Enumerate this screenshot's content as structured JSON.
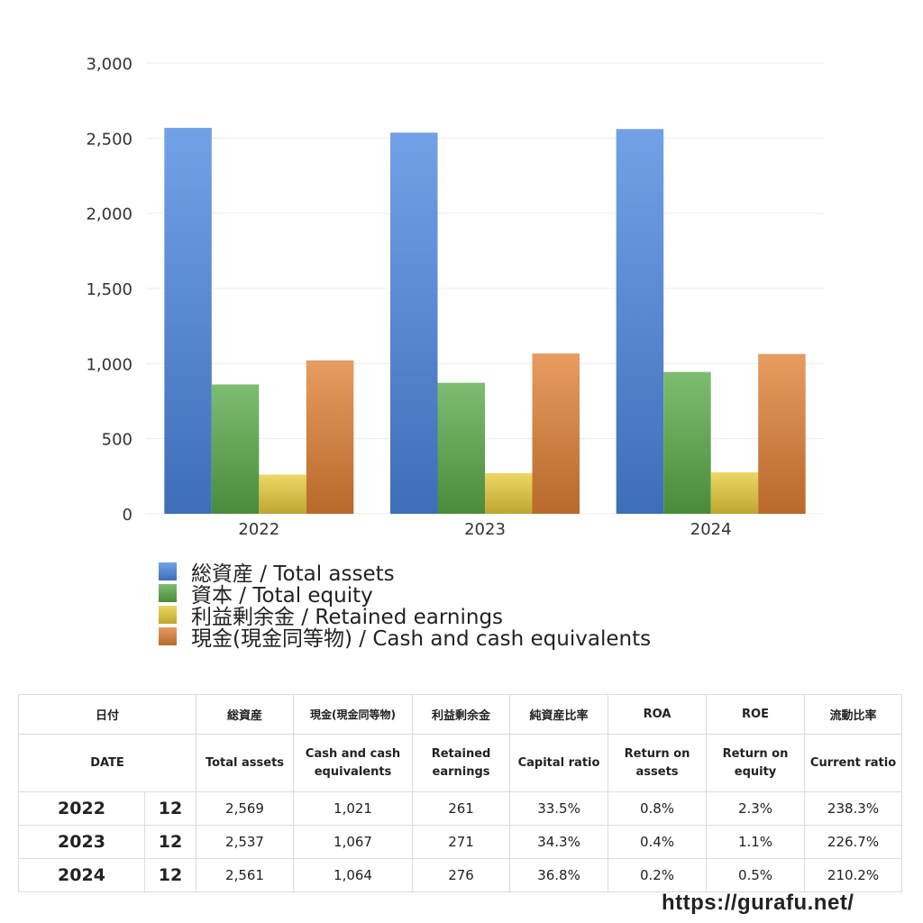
{
  "chart_data": {
    "type": "bar",
    "categories": [
      "2022",
      "2023",
      "2024"
    ],
    "series": [
      {
        "name": "総資産 / Total assets",
        "values": [
          2569,
          2537,
          2561
        ],
        "color": "#4a86e0"
      },
      {
        "name": "資本 / Total equity",
        "values": [
          861,
          872,
          944
        ],
        "color": "#5aaa48"
      },
      {
        "name": "利益剰余金 / Retained earnings",
        "values": [
          261,
          271,
          276
        ],
        "color": "#e8cc3a"
      },
      {
        "name": "現金(現金同等物) / Cash and cash equivalents",
        "values": [
          1021,
          1067,
          1064
        ],
        "color": "#e08035"
      }
    ],
    "y_ticks": [
      "0",
      "500",
      "1,000",
      "1,500",
      "2,000",
      "2,500",
      "3,000"
    ],
    "ylim": [
      0,
      3000
    ],
    "grid": true,
    "legend_position": "bottom-left"
  },
  "table": {
    "headers_jp": [
      "日付",
      "総資産",
      "現金(現金同等物)",
      "利益剰余金",
      "純資産比率",
      "ROA",
      "ROE",
      "流動比率"
    ],
    "headers_en": [
      "DATE",
      [
        "Total assets"
      ],
      [
        "Cash and cash",
        "equivalents"
      ],
      [
        "Retained",
        "earnings"
      ],
      [
        "Capital ratio"
      ],
      [
        "Return on",
        "assets"
      ],
      [
        "Return on",
        "equity"
      ],
      [
        "Current ratio"
      ]
    ],
    "rows": [
      {
        "year": "2022",
        "month": "12",
        "total_assets": "2,569",
        "cash": "1,021",
        "retained": "261",
        "capital_ratio": "33.5%",
        "roa": "0.8%",
        "roe": "2.3%",
        "current_ratio": "238.3%"
      },
      {
        "year": "2023",
        "month": "12",
        "total_assets": "2,537",
        "cash": "1,067",
        "retained": "271",
        "capital_ratio": "34.3%",
        "roa": "0.4%",
        "roe": "1.1%",
        "current_ratio": "226.7%"
      },
      {
        "year": "2024",
        "month": "12",
        "total_assets": "2,561",
        "cash": "1,064",
        "retained": "276",
        "capital_ratio": "36.8%",
        "roa": "0.2%",
        "roe": "0.5%",
        "current_ratio": "210.2%"
      }
    ]
  },
  "site_url": "https://gurafu.net/"
}
